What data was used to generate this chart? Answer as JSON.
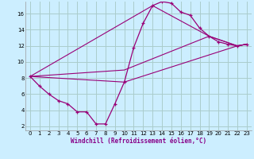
{
  "xlabel": "Windchill (Refroidissement éolien,°C)",
  "bg_color": "#cceeff",
  "grid_color": "#aacccc",
  "line_color": "#990077",
  "xlim": [
    -0.5,
    23.5
  ],
  "ylim": [
    1.5,
    17.5
  ],
  "xticks": [
    0,
    1,
    2,
    3,
    4,
    5,
    6,
    7,
    8,
    9,
    10,
    11,
    12,
    13,
    14,
    15,
    16,
    17,
    18,
    19,
    20,
    21,
    22,
    23
  ],
  "yticks": [
    2,
    4,
    6,
    8,
    10,
    12,
    14,
    16
  ],
  "main_series": {
    "x": [
      0,
      1,
      2,
      3,
      4,
      5,
      6,
      7,
      8,
      9,
      10,
      11,
      12,
      13,
      14,
      15,
      16,
      17,
      18,
      19,
      20,
      21,
      22,
      23
    ],
    "y": [
      8.2,
      7.0,
      6.0,
      5.2,
      4.8,
      3.8,
      3.8,
      2.3,
      2.3,
      4.8,
      7.5,
      11.8,
      14.8,
      17.0,
      17.5,
      17.3,
      16.2,
      15.8,
      14.2,
      13.2,
      12.5,
      12.2,
      12.0,
      12.2
    ]
  },
  "connectors": [
    {
      "x": [
        0,
        10,
        22,
        23
      ],
      "y": [
        8.2,
        7.5,
        12.0,
        12.2
      ]
    },
    {
      "x": [
        0,
        10,
        19,
        22,
        23
      ],
      "y": [
        8.2,
        9.0,
        13.2,
        12.0,
        12.2
      ]
    },
    {
      "x": [
        0,
        13,
        19,
        22,
        23
      ],
      "y": [
        8.2,
        17.0,
        13.2,
        12.0,
        12.2
      ]
    }
  ]
}
